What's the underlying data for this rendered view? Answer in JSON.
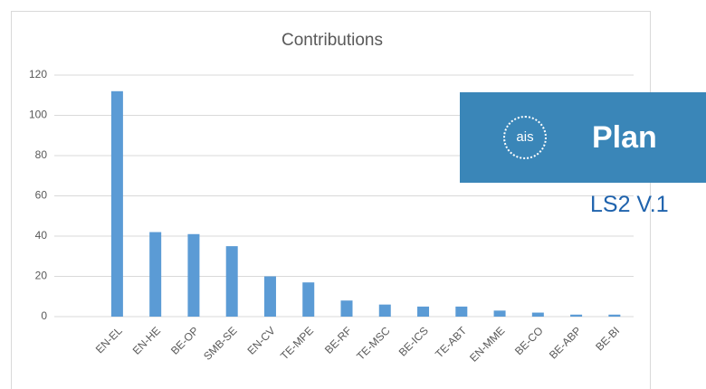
{
  "chart_data": {
    "type": "bar",
    "title": "Contributions",
    "categories": [
      null,
      "EN-EL",
      "EN-HE",
      "BE-OP",
      "SMB-SE",
      "EN-CV",
      "TE-MPE",
      "BE-RF",
      "TE-MSC",
      "BE-ICS",
      "TE-ABT",
      "EN-MME",
      "BE-CO",
      "BE-ABP",
      "BE-BI"
    ],
    "values": [
      null,
      112,
      42,
      41,
      35,
      20,
      17,
      8,
      6,
      5,
      5,
      3,
      2,
      1,
      1
    ],
    "color": "#5b9bd5",
    "ylim": [
      0,
      120
    ],
    "yticks": [
      0,
      20,
      40,
      60,
      80,
      100,
      120
    ],
    "grid": true
  },
  "overlay": {
    "logo": "ais",
    "label": "Plan",
    "version": "LS2 V.1"
  }
}
